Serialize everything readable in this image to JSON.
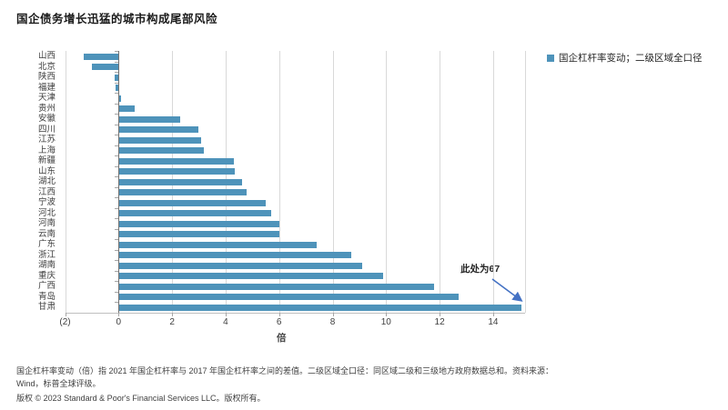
{
  "title": "国企债务增长迅猛的城市构成尾部风险",
  "legend": {
    "label": "国企杠杆率变动；二级区域全口径",
    "swatch_color": "#4E93BA"
  },
  "chart_data": {
    "type": "bar",
    "orientation": "horizontal",
    "title": "国企债务增长迅猛的城市构成尾部风险",
    "xlabel": "倍",
    "ylabel": "",
    "categories": [
      "山西",
      "北京",
      "陕西",
      "福建",
      "天津",
      "贵州",
      "安徽",
      "四川",
      "江苏",
      "上海",
      "新疆",
      "山东",
      "湖北",
      "江西",
      "宁波",
      "河北",
      "河南",
      "云南",
      "广东",
      "浙江",
      "湖南",
      "重庆",
      "广西",
      "青岛",
      "甘肃"
    ],
    "values": [
      -1.3,
      -1.0,
      -0.15,
      -0.1,
      0.1,
      0.6,
      2.3,
      3.0,
      3.1,
      3.2,
      4.3,
      4.35,
      4.6,
      4.8,
      5.5,
      5.7,
      6.0,
      6.0,
      7.4,
      8.7,
      9.1,
      9.9,
      11.8,
      12.7,
      67
    ],
    "truncation": {
      "category": "甘肃",
      "actual_value": 67,
      "displayed_at": 15.05
    },
    "xlim": [
      -2,
      15.1
    ],
    "xticks": [
      -2,
      0,
      2,
      4,
      6,
      8,
      10,
      12,
      14
    ],
    "xtick_labels": [
      "(2)",
      "0",
      "2",
      "4",
      "6",
      "8",
      "10",
      "12",
      "14"
    ],
    "grid": true,
    "legend_position": "top-right",
    "bar_color": "#4E93BA",
    "gridline_color": "#D9D9D9",
    "zero_axis_color": "#737373",
    "axis_color": "#BFBFBF"
  },
  "annotation": {
    "text": "此处为67",
    "arrow_color": "#4472C4"
  },
  "footnote_line1": "国企杠杆率变动（倍）指 2021 年国企杠杆率与 2017 年国企杠杆率之间的差值。二级区域全口径：同区域二级和三级地方政府数据总和。资料来源：",
  "footnote_line2": "Wind，标普全球评级。",
  "copyright": "版权 © 2023 Standard & Poor's Financial Services LLC。版权所有。"
}
